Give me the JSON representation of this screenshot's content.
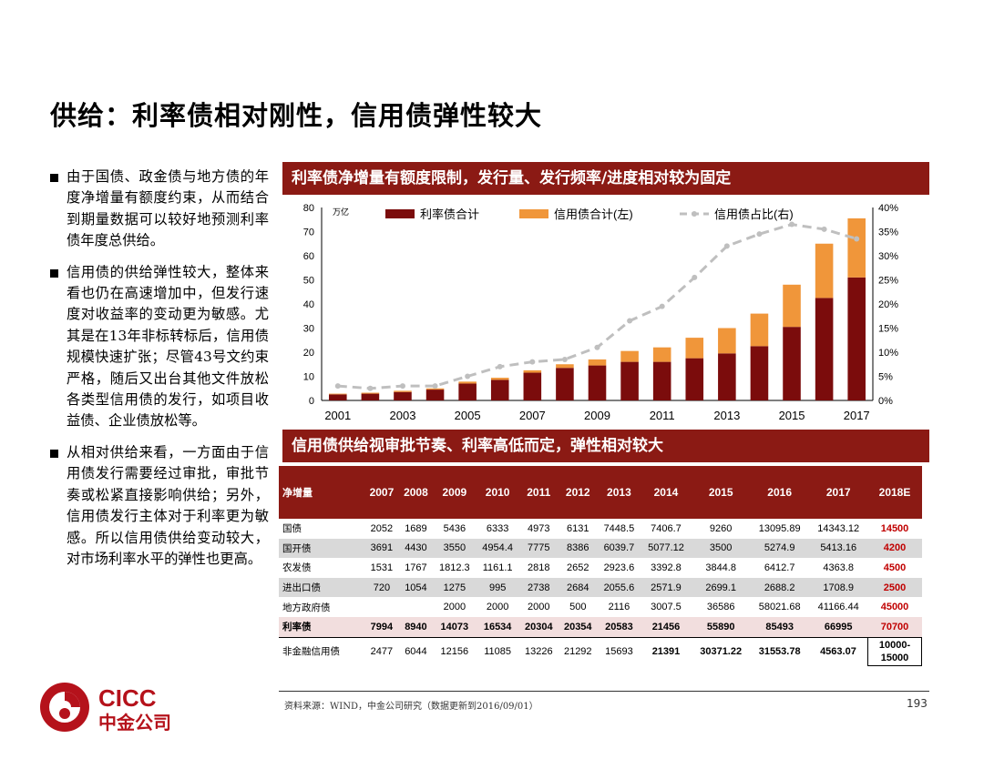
{
  "title": "供给：利率债相对刚性，信用债弹性较大",
  "bullets": [
    "由于国债、政金债与地方债的年度净增量有额度约束，从而结合到期量数据可以较好地预测利率债年度总供给。",
    "信用债的供给弹性较大，整体来看也仍在高速增加中，但发行速度对收益率的变动更为敏感。尤其是在13年非标转标后，信用债规模快速扩张；尽管43号文约束严格，随后又出台其他文件放松各类型信用债的发行，如项目收益债、企业债放松等。",
    "从相对供给来看，一方面由于信用债发行需要经过审批，审批节奏或松紧直接影响供给；另外，信用债发行主体对于利率更为敏感。所以信用债供给变动较大，对市场利率水平的弹性也更高。"
  ],
  "banner1": "利率债净增量有额度限制，发行量、发行频率/进度相对较为固定",
  "banner2": "信用债供给视审批节奏、利率高低而定，弹性相对较大",
  "chart_data": {
    "type": "bar",
    "stacked": true,
    "unit_label": "万亿",
    "categories": [
      "2001",
      "2002",
      "2003",
      "2004",
      "2005",
      "2006",
      "2007",
      "2008",
      "2009",
      "2010",
      "2011",
      "2012",
      "2013",
      "2014",
      "2015",
      "2016",
      "2017"
    ],
    "x_tick_labels": [
      "2001",
      "2003",
      "2005",
      "2007",
      "2009",
      "2011",
      "2013",
      "2015",
      "2017"
    ],
    "series": [
      {
        "name": "利率债合计",
        "color": "#7b0c0c",
        "values": [
          2.5,
          2.8,
          3.5,
          4.5,
          7,
          8.5,
          11.5,
          13.5,
          14.5,
          16,
          16,
          17.5,
          19.5,
          22.5,
          30.5,
          42.5,
          51
        ]
      },
      {
        "name": "信用债合计(左)",
        "color": "#f0963a",
        "values": [
          0.3,
          0.4,
          0.5,
          0.5,
          0.8,
          0.9,
          1.0,
          1.5,
          2.5,
          4.5,
          6,
          8.5,
          10.5,
          13.5,
          17.5,
          22.5,
          24.5
        ]
      },
      {
        "name": "信用债占比(右)",
        "color": "#bfbfbf",
        "type": "line",
        "axis": "right",
        "values": [
          0.03,
          0.025,
          0.03,
          0.03,
          0.05,
          0.07,
          0.08,
          0.085,
          0.11,
          0.165,
          0.195,
          0.255,
          0.32,
          0.345,
          0.365,
          0.355,
          0.335
        ]
      }
    ],
    "ylim_left": [
      0,
      80
    ],
    "yticks_left": [
      "0",
      "10",
      "20",
      "30",
      "40",
      "50",
      "60",
      "70",
      "80"
    ],
    "ylim_right": [
      0,
      0.4
    ],
    "yticks_right": [
      "0%",
      "5%",
      "10%",
      "15%",
      "20%",
      "25%",
      "30%",
      "35%",
      "40%"
    ],
    "legend": "top"
  },
  "table": {
    "header_label": "净增量",
    "years": [
      "2007",
      "2008",
      "2009",
      "2010",
      "2011",
      "2012",
      "2013",
      "2014",
      "2015",
      "2016",
      "2017",
      "2018E"
    ],
    "rows": [
      {
        "label": "国债",
        "values": [
          "2052",
          "1689",
          "5436",
          "6333",
          "4973",
          "6131",
          "7448.5",
          "7406.7",
          "9260",
          "13095.89",
          "14343.12",
          "14500"
        ]
      },
      {
        "label": "国开债",
        "values": [
          "3691",
          "4430",
          "3550",
          "4954.4",
          "7775",
          "8386",
          "6039.7",
          "5077.12",
          "3500",
          "5274.9",
          "5413.16",
          "4200"
        ]
      },
      {
        "label": "农发债",
        "values": [
          "1531",
          "1767",
          "1812.3",
          "1161.1",
          "2818",
          "2652",
          "2923.6",
          "3392.8",
          "3844.8",
          "6412.7",
          "4363.8",
          "4500"
        ]
      },
      {
        "label": "进出口债",
        "values": [
          "720",
          "1054",
          "1275",
          "995",
          "2738",
          "2684",
          "2055.6",
          "2571.9",
          "2699.1",
          "2688.2",
          "1708.9",
          "2500"
        ]
      },
      {
        "label": "地方政府债",
        "values": [
          "",
          "",
          "2000",
          "2000",
          "2000",
          "500",
          "2116",
          "3007.5",
          "36586",
          "58021.68",
          "41166.44",
          "45000"
        ]
      },
      {
        "label": "利率债",
        "values": [
          "7994",
          "8940",
          "14073",
          "16534",
          "20304",
          "20354",
          "20583",
          "21456",
          "55890",
          "85493",
          "66995",
          "70700"
        ]
      },
      {
        "label": "非金融信用债",
        "values": [
          "2477",
          "6044",
          "12156",
          "11085",
          "13226",
          "21292",
          "15693",
          "21391",
          "30371.22",
          "31553.78",
          "4563.07",
          "10000-15000"
        ]
      }
    ]
  },
  "source": "资料来源：WIND，中金公司研究（数据更新到2016/09/01）",
  "page_number": "193",
  "logo": {
    "en": "CICC",
    "cn": "中金公司",
    "color": "#b5121b"
  }
}
